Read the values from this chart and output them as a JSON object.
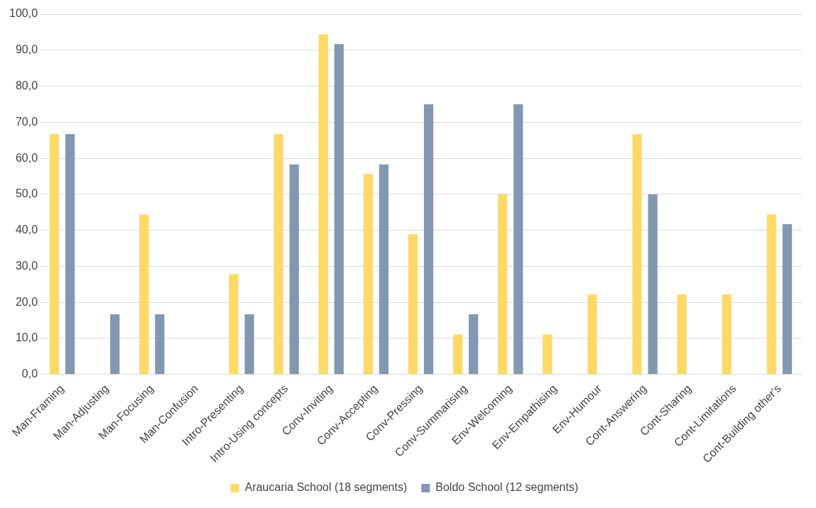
{
  "chart_data": {
    "type": "bar",
    "categories": [
      "Man-Framing",
      "Man-Adjusting",
      "Man-Focusing",
      "Man-Confusion",
      "Intro-Presenting",
      "Intro-Using concepts",
      "Conv-Inviting",
      "Conv-Accepting",
      "Conv-Pressing",
      "Conv-Summarising",
      "Env-Welcoming",
      "Env-Empathising",
      "Env-Humour",
      "Cont-Answering",
      "Cont-Sharing",
      "Cont-Limitations",
      "Cont-Building other's"
    ],
    "series": [
      {
        "name": "Araucaria School (18 segments)",
        "color": "#ffd966",
        "values": [
          66.7,
          0,
          44.4,
          0,
          27.8,
          66.7,
          94.4,
          55.6,
          38.9,
          11.1,
          50,
          11.1,
          22.2,
          66.7,
          22.2,
          22.2,
          44.4
        ]
      },
      {
        "name": "Boldo School (12 segments)",
        "color": "#8497b0",
        "values": [
          66.7,
          16.7,
          16.7,
          0,
          16.7,
          58.3,
          91.7,
          58.3,
          75,
          16.7,
          75,
          0,
          0,
          50,
          0,
          0,
          41.7
        ]
      }
    ],
    "ylim": [
      0,
      100
    ],
    "yticks": [
      {
        "value": 0,
        "label": "0,0"
      },
      {
        "value": 10,
        "label": "10,0"
      },
      {
        "value": 20,
        "label": "20,0"
      },
      {
        "value": 30,
        "label": "30,0"
      },
      {
        "value": 40,
        "label": "40,0"
      },
      {
        "value": 50,
        "label": "50,0"
      },
      {
        "value": 60,
        "label": "60,0"
      },
      {
        "value": 70,
        "label": "70,0"
      },
      {
        "value": 80,
        "label": "80,0"
      },
      {
        "value": 90,
        "label": "90,0"
      },
      {
        "value": 100,
        "label": "100,0"
      }
    ],
    "grid": "y",
    "legend": "bottom"
  }
}
